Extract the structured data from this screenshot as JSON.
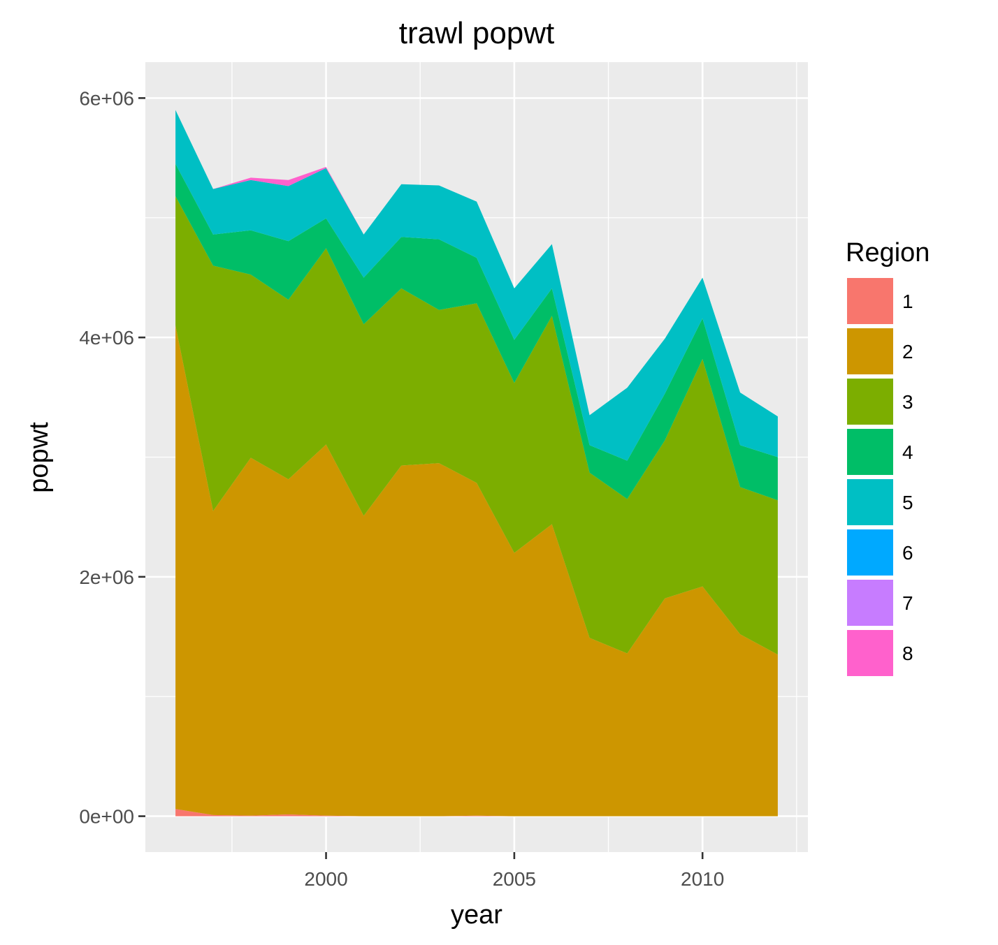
{
  "chart_data": {
    "type": "area",
    "stacked": true,
    "title": "trawl popwt",
    "xlabel": "year",
    "ylabel": "popwt",
    "x": [
      1996,
      1997,
      1998,
      1999,
      2000,
      2001,
      2002,
      2003,
      2004,
      2005,
      2006,
      2007,
      2008,
      2009,
      2010,
      2011,
      2012
    ],
    "xlim": [
      1995.2,
      2012.8
    ],
    "ylim": [
      -300000,
      6300000
    ],
    "x_ticks": [
      2000,
      2005,
      2010
    ],
    "x_tick_labels": [
      "2000",
      "2005",
      "2010"
    ],
    "y_ticks": [
      0,
      2000000,
      4000000,
      6000000
    ],
    "y_tick_labels": [
      "0e+00",
      "2e+06",
      "4e+06",
      "6e+06"
    ],
    "grid": true,
    "legend": {
      "title": "Region",
      "position": "right",
      "entries": [
        "1",
        "2",
        "3",
        "4",
        "5",
        "6",
        "7",
        "8"
      ]
    },
    "series": [
      {
        "name": "1",
        "color": "#F8766D",
        "values": [
          60000,
          10000,
          5000,
          15000,
          5000,
          0,
          0,
          0,
          5000,
          0,
          0,
          0,
          0,
          0,
          0,
          0,
          0
        ]
      },
      {
        "name": "2",
        "color": "#CD9600",
        "values": [
          4040000,
          2540000,
          2990000,
          2800000,
          3100000,
          2510000,
          2930000,
          2950000,
          2780000,
          2200000,
          2440000,
          1490000,
          1360000,
          1820000,
          1920000,
          1520000,
          1350000
        ]
      },
      {
        "name": "3",
        "color": "#7CAE00",
        "values": [
          1080000,
          2050000,
          1530000,
          1500000,
          1640000,
          1600000,
          1480000,
          1280000,
          1500000,
          1420000,
          1740000,
          1380000,
          1290000,
          1320000,
          1900000,
          1230000,
          1290000
        ]
      },
      {
        "name": "4",
        "color": "#00BE67",
        "values": [
          270000,
          260000,
          370000,
          490000,
          250000,
          390000,
          430000,
          590000,
          380000,
          360000,
          230000,
          230000,
          320000,
          390000,
          340000,
          350000,
          360000
        ]
      },
      {
        "name": "5",
        "color": "#00BFC4",
        "values": [
          450000,
          380000,
          420000,
          460000,
          420000,
          360000,
          440000,
          450000,
          470000,
          430000,
          370000,
          250000,
          610000,
          460000,
          340000,
          440000,
          340000
        ]
      },
      {
        "name": "6",
        "color": "#00A9FF",
        "values": [
          0,
          0,
          0,
          0,
          0,
          0,
          0,
          0,
          0,
          0,
          0,
          0,
          0,
          0,
          0,
          0,
          0
        ]
      },
      {
        "name": "7",
        "color": "#C77CFF",
        "values": [
          0,
          0,
          0,
          0,
          0,
          0,
          0,
          0,
          0,
          0,
          0,
          0,
          0,
          0,
          0,
          0,
          0
        ]
      },
      {
        "name": "8",
        "color": "#FF61CC",
        "values": [
          0,
          0,
          20000,
          50000,
          10000,
          0,
          0,
          0,
          0,
          0,
          0,
          0,
          0,
          0,
          0,
          0,
          0
        ]
      }
    ]
  }
}
